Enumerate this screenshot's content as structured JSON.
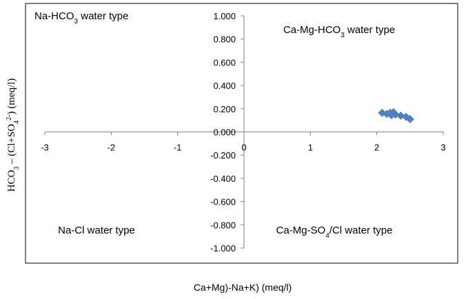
{
  "chart_data": {
    "type": "scatter",
    "xlim": [
      -3,
      3
    ],
    "ylim": [
      -1.0,
      1.0
    ],
    "x_ticks": [
      -3,
      -2,
      -1,
      0,
      1,
      2,
      3
    ],
    "x_tick_labels": [
      "-3",
      "-2",
      "-1",
      "0",
      "1",
      "2",
      "3"
    ],
    "y_ticks": [
      1.0,
      0.8,
      0.6,
      0.4,
      0.2,
      0.0,
      -0.2,
      -0.4,
      -0.6,
      -0.8,
      -1.0
    ],
    "y_tick_labels": [
      "1.000",
      "0.800",
      "0.600",
      "0.400",
      "0.200",
      "0.000",
      "-0.200",
      "-0.400",
      "-0.600",
      "-0.800",
      "-1.000"
    ],
    "xlabel": "Ca+Mg)-Na+K) (meq/l)",
    "ylabel": {
      "part1": "HCO",
      "sub1": "3",
      "part2": " – (Cl+SO",
      "sub2": "4",
      "sup2": "2-",
      "part3": ") (meq/l)"
    },
    "grid": false,
    "legend": "none",
    "marker": "diamond",
    "marker_color": "#4f81bd",
    "points": [
      {
        "x": 2.08,
        "y": 0.165
      },
      {
        "x": 2.15,
        "y": 0.155
      },
      {
        "x": 2.2,
        "y": 0.165
      },
      {
        "x": 2.25,
        "y": 0.17
      },
      {
        "x": 2.22,
        "y": 0.145
      },
      {
        "x": 2.28,
        "y": 0.15
      },
      {
        "x": 2.36,
        "y": 0.14
      },
      {
        "x": 2.44,
        "y": 0.13
      },
      {
        "x": 2.5,
        "y": 0.11
      }
    ],
    "annotations": [
      {
        "id": "na-hco3",
        "parts": [
          {
            "t": "Na-HCO",
            "sub": false
          },
          {
            "t": "3",
            "sub": true
          },
          {
            "t": " water type",
            "sub": false
          }
        ]
      },
      {
        "id": "ca-mg-hco3",
        "parts": [
          {
            "t": "Ca-Mg-HCO",
            "sub": false
          },
          {
            "t": "3",
            "sub": true
          },
          {
            "t": " water type",
            "sub": false
          }
        ]
      },
      {
        "id": "na-cl",
        "parts": [
          {
            "t": "Na-Cl water type",
            "sub": false
          }
        ]
      },
      {
        "id": "ca-mg-so4-cl",
        "parts": [
          {
            "t": "Ca-Mg-SO",
            "sub": false
          },
          {
            "t": "4",
            "sub": true
          },
          {
            "t": "/Cl water type",
            "sub": false
          }
        ]
      }
    ]
  }
}
